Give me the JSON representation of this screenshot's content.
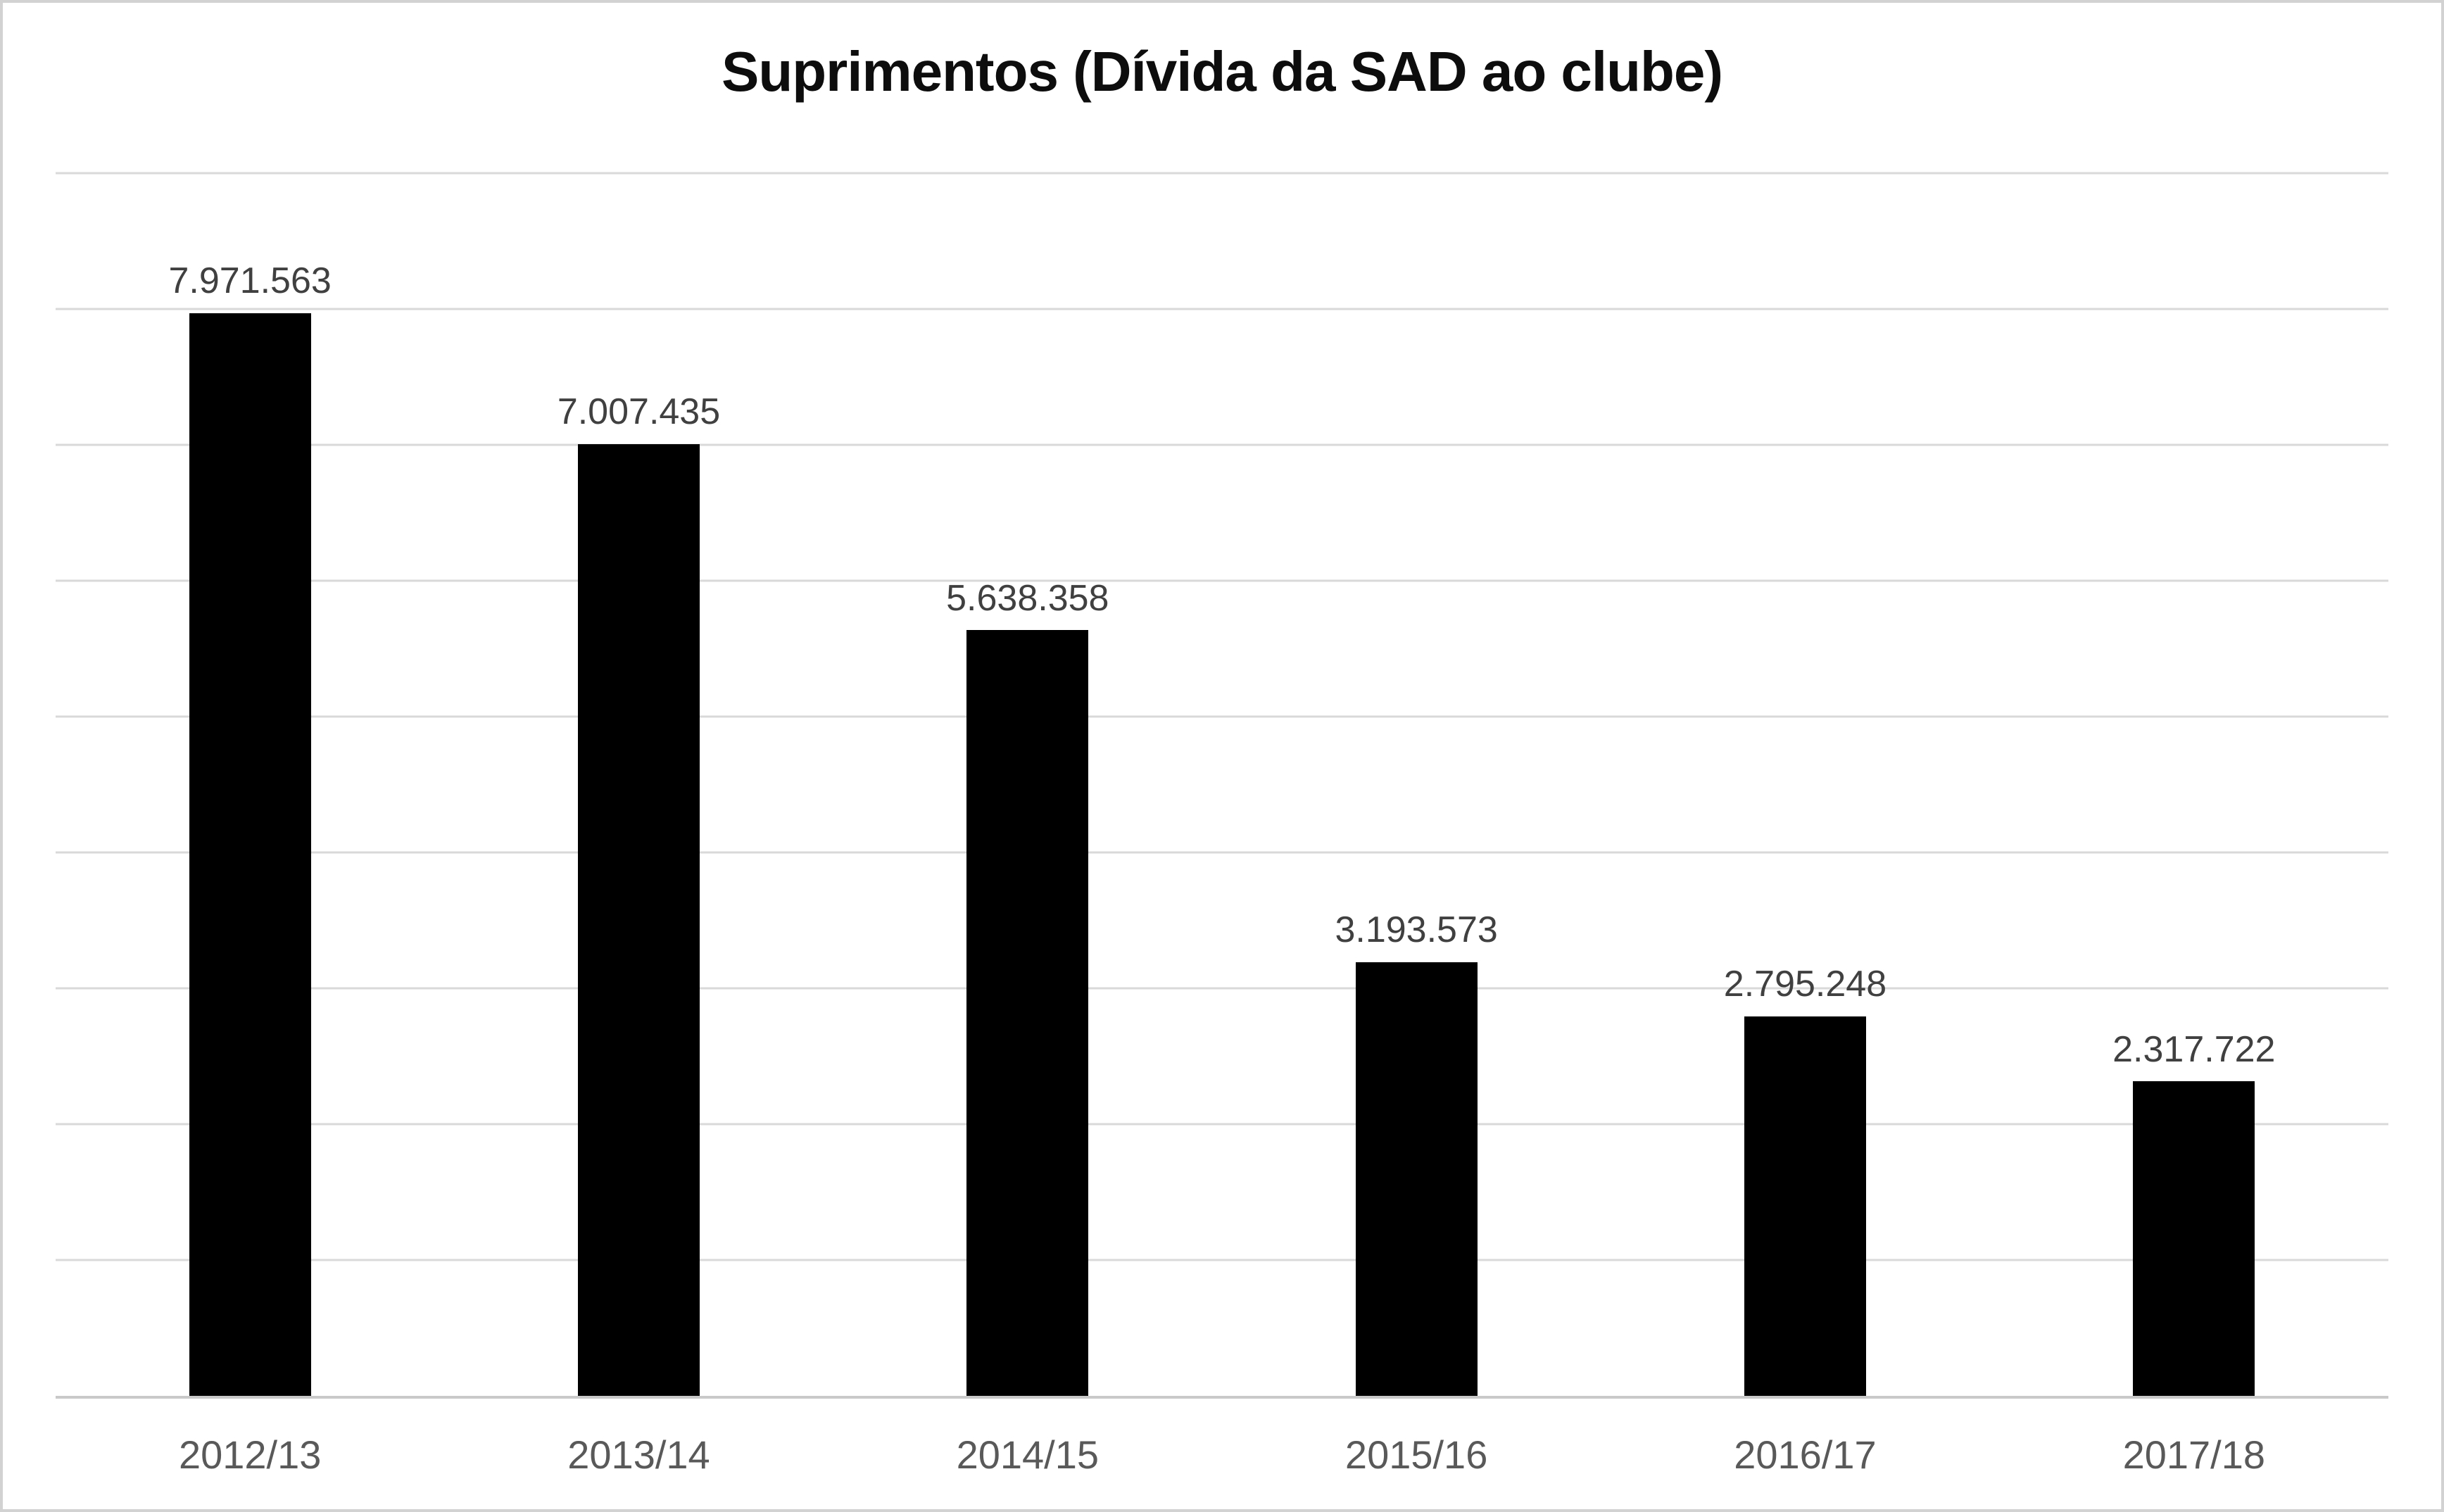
{
  "chart_data": {
    "type": "bar",
    "title": "Suprimentos (Dívida da SAD ao clube)",
    "categories": [
      "2012/13",
      "2013/14",
      "2014/15",
      "2015/16",
      "2016/17",
      "2017/18"
    ],
    "values": [
      7971563,
      7007435,
      5638358,
      3193573,
      2795248,
      2317722
    ],
    "value_labels": [
      "7.971.563",
      "7.007.435",
      "5.638.358",
      "3.193.573",
      "2.795.248",
      "2.317.722"
    ],
    "xlabel": "",
    "ylabel": "",
    "ylim": [
      0,
      9000000
    ],
    "gridline_step": 1000000,
    "grid": true,
    "legend": "none",
    "colors": {
      "bar": "#000000",
      "gridline": "#d9d9d9",
      "axis_line": "#c9c9c9",
      "value_label_text": "#404040",
      "category_label_text": "#595959",
      "title_text": "#0d0d0d",
      "background": "#ffffff",
      "canvas_border": "#d2d2d2"
    }
  }
}
